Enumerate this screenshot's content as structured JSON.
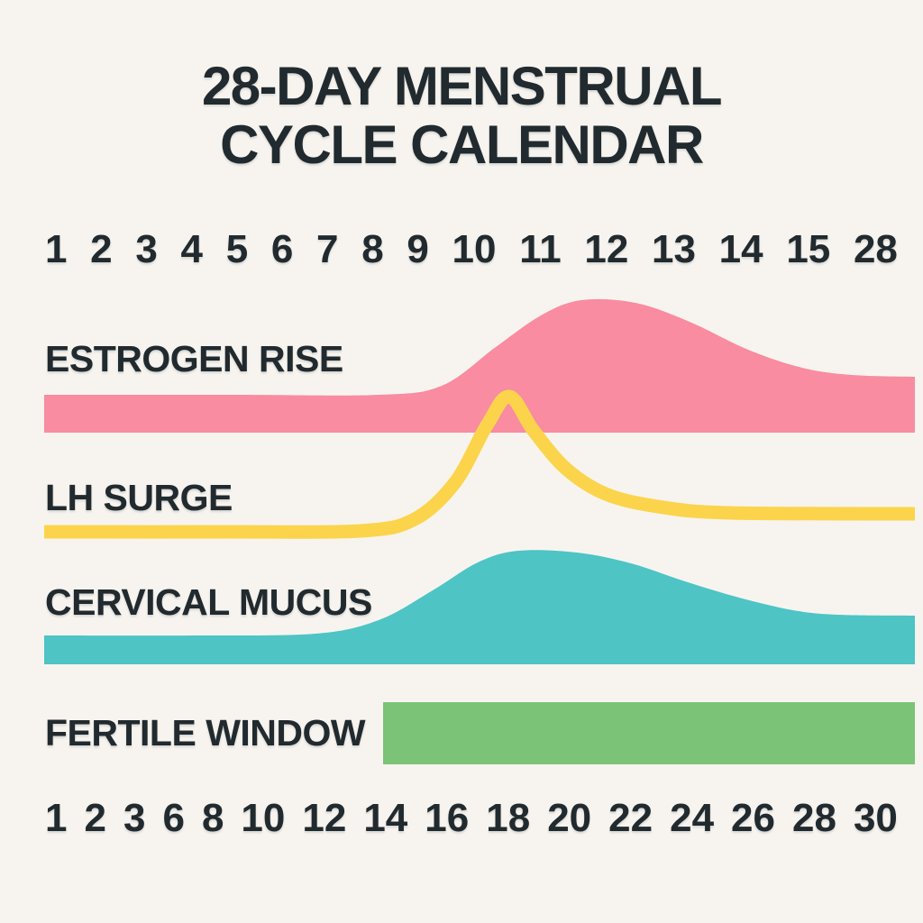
{
  "palette": {
    "background": "#F7F4EF",
    "text": "#212A2E",
    "estrogen_pink": "#F98CA0",
    "lh_yellow": "#FBD44C",
    "mucus_teal": "#4EC4C5",
    "fertile_green": "#7BC377"
  },
  "header": {
    "title_line1": "28-DAY MENSTRUAL",
    "title_line2": "CYCLE CALENDAR"
  },
  "labels": {
    "estrogen": "ESTROGEN RISE",
    "lh": "LH SURGE",
    "mucus": "CERVICAL MUCUS",
    "fertile": "FERTILE WINDOW"
  },
  "chart_data": {
    "type": "area",
    "title": "28-DAY MENSTRUAL CYCLE CALENDAR",
    "legend_position": "left",
    "grid": false,
    "top_axis_days": [
      "1",
      "2",
      "3",
      "4",
      "5",
      "6",
      "7",
      "8",
      "9",
      "10",
      "11",
      "12",
      "13",
      "14",
      "15",
      "28"
    ],
    "bottom_axis_days": [
      "1",
      "2",
      "3",
      "6",
      "8",
      "10",
      "12",
      "14",
      "16",
      "18",
      "20",
      "22",
      "24",
      "26",
      "28",
      "30"
    ],
    "series": [
      {
        "name": "ESTROGEN RISE",
        "style": "filled-area",
        "color": "#F98CA0",
        "baseline": 480,
        "points": [
          [
            49,
            438
          ],
          [
            260,
            438
          ],
          [
            420,
            438
          ],
          [
            490,
            428
          ],
          [
            550,
            385
          ],
          [
            600,
            350
          ],
          [
            645,
            333
          ],
          [
            705,
            336
          ],
          [
            765,
            357
          ],
          [
            830,
            388
          ],
          [
            890,
            408
          ],
          [
            945,
            416
          ],
          [
            1015,
            418
          ]
        ]
      },
      {
        "name": "LH SURGE",
        "style": "line",
        "color": "#FBD44C",
        "stroke_width": 15,
        "points": [
          [
            49,
            590
          ],
          [
            250,
            590
          ],
          [
            400,
            589
          ],
          [
            460,
            576
          ],
          [
            505,
            535
          ],
          [
            540,
            472
          ],
          [
            565,
            440
          ],
          [
            592,
            478
          ],
          [
            628,
            520
          ],
          [
            672,
            548
          ],
          [
            730,
            562
          ],
          [
            810,
            569
          ],
          [
            1015,
            570
          ]
        ]
      },
      {
        "name": "CERVICAL MUCUS",
        "style": "filled-area",
        "color": "#4EC4C5",
        "baseline": 737,
        "points": [
          [
            49,
            705
          ],
          [
            220,
            705
          ],
          [
            350,
            703
          ],
          [
            420,
            688
          ],
          [
            480,
            655
          ],
          [
            530,
            624
          ],
          [
            575,
            611
          ],
          [
            640,
            613
          ],
          [
            700,
            625
          ],
          [
            760,
            645
          ],
          [
            820,
            663
          ],
          [
            880,
            677
          ],
          [
            930,
            682
          ],
          [
            1015,
            683
          ]
        ]
      },
      {
        "name": "FERTILE WINDOW",
        "style": "bar",
        "color": "#7BC377",
        "x1": 425,
        "x2": 1015,
        "y1": 779,
        "y2": 848
      }
    ]
  }
}
